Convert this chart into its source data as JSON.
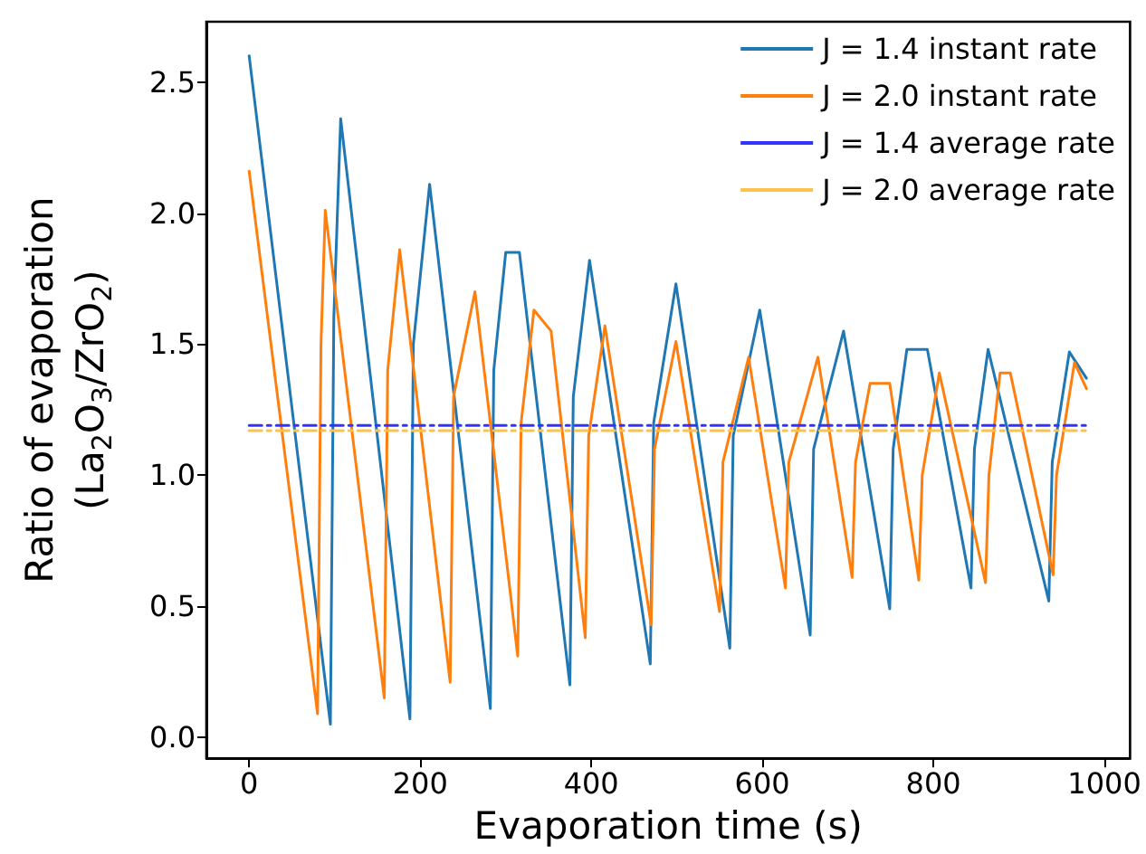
{
  "chart_data": {
    "type": "line",
    "xlabel": "Evaporation time (s)",
    "ylabel": "Ratio of evaporation\n(La$_{2}$O$_{3}$/ZrO$_{2}$)",
    "xlim": [
      -50,
      1030
    ],
    "ylim": [
      -0.08,
      2.73
    ],
    "xticks": [
      0,
      200,
      400,
      600,
      800,
      1000
    ],
    "yticks": [
      {
        "value": 0,
        "label": "0.0"
      },
      0.5,
      {
        "value": 1,
        "label": "1.0"
      },
      1.5,
      {
        "value": 2,
        "label": "2.0"
      },
      2.5
    ],
    "grid": false,
    "legend": "top right",
    "marker": "none",
    "series": [
      {
        "name": "J = 1.4 instant rate",
        "color": "#1f77b4",
        "line_style": "solid",
        "x": [
          0,
          95,
          99,
          107,
          188,
          192,
          211,
          282,
          286,
          300,
          316,
          375,
          379,
          398,
          469,
          473,
          499,
          562,
          566,
          597,
          656,
          660,
          695,
          749,
          753,
          769,
          793,
          844,
          848,
          864,
          935,
          939,
          959,
          979
        ],
        "values": [
          2.6,
          0.05,
          1.6,
          2.36,
          0.07,
          1.5,
          2.11,
          0.11,
          1.4,
          1.85,
          1.85,
          0.2,
          1.3,
          1.82,
          0.28,
          1.2,
          1.73,
          0.34,
          1.15,
          1.63,
          0.39,
          1.1,
          1.55,
          0.49,
          1.1,
          1.48,
          1.48,
          0.57,
          1.1,
          1.48,
          0.52,
          1.05,
          1.47,
          1.37
        ]
      },
      {
        "name": "J = 2.0 instant rate",
        "color": "#ff7f0e",
        "line_style": "solid",
        "x": [
          0,
          80,
          84,
          89,
          158,
          162,
          176,
          235,
          239,
          264,
          314,
          318,
          333,
          353,
          393,
          397,
          416,
          470,
          474,
          499,
          550,
          554,
          584,
          627,
          631,
          665,
          705,
          709,
          726,
          749,
          783,
          787,
          807,
          861,
          865,
          878,
          890,
          940,
          944,
          965,
          979
        ],
        "values": [
          2.16,
          0.09,
          1.5,
          2.01,
          0.15,
          1.4,
          1.86,
          0.21,
          1.3,
          1.7,
          0.31,
          1.2,
          1.63,
          1.55,
          0.38,
          1.15,
          1.57,
          0.43,
          1.1,
          1.51,
          0.48,
          1.05,
          1.45,
          0.57,
          1.05,
          1.45,
          0.61,
          1.05,
          1.35,
          1.35,
          0.6,
          1.0,
          1.39,
          0.59,
          1.0,
          1.39,
          1.39,
          0.62,
          1.0,
          1.43,
          1.33
        ]
      },
      {
        "name": "J = 1.4 average rate",
        "color": "#3333ff",
        "line_style": "dashed",
        "x": [
          0,
          979
        ],
        "values": [
          1.19,
          1.19
        ]
      },
      {
        "name": "J = 2.0 average rate",
        "color": "#ffc14d",
        "line_style": "dashed",
        "x": [
          0,
          979
        ],
        "values": [
          1.17,
          1.17
        ]
      }
    ]
  }
}
